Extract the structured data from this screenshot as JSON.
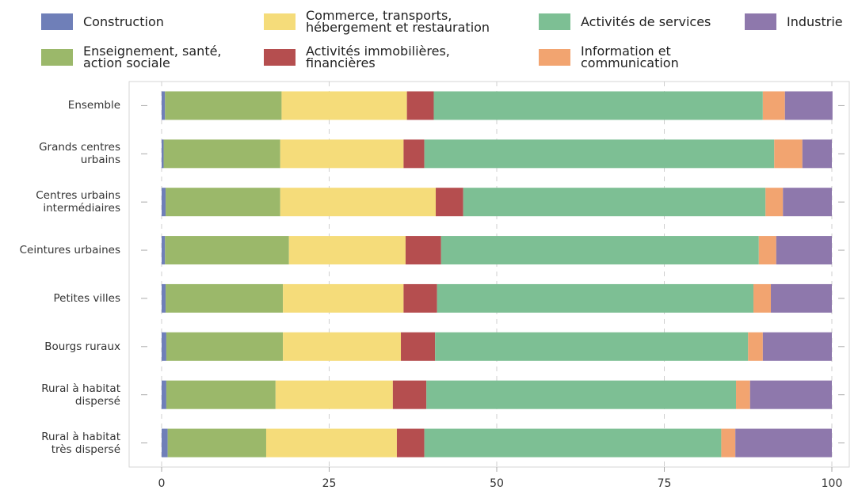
{
  "chart_data": {
    "type": "stacked-barh",
    "categories": [
      "Ensemble",
      "Grands centres\nurbains",
      "Centres urbains\nintermédiaires",
      "Ceintures urbaines",
      "Petites villes",
      "Bourgs ruraux",
      "Rural à habitat\ndispersé",
      "Rural à habitat\ntrès dispersé"
    ],
    "series": [
      {
        "name": "Construction",
        "color": "#6f7fb8",
        "values": [
          0.5,
          0.3,
          0.6,
          0.5,
          0.6,
          0.7,
          0.7,
          0.9
        ]
      },
      {
        "name": "Enseignement, santé,\naction sociale",
        "color": "#9bb86a",
        "values": [
          17.4,
          17.4,
          17.1,
          18.5,
          17.5,
          17.4,
          16.3,
          14.7
        ]
      },
      {
        "name": "Commerce, transports,\nhébergement et restauration",
        "color": "#f5dc7a",
        "values": [
          18.7,
          18.4,
          23.2,
          17.4,
          18.0,
          17.6,
          17.5,
          19.5
        ]
      },
      {
        "name": "Activités immobilières,\nfinancières",
        "color": "#b54e4f",
        "values": [
          4.0,
          3.1,
          4.1,
          5.3,
          5.0,
          5.1,
          5.0,
          4.1
        ]
      },
      {
        "name": "Activités de services",
        "color": "#7dbf94",
        "values": [
          49.1,
          52.2,
          45.1,
          47.4,
          47.2,
          46.7,
          46.2,
          44.3
        ]
      },
      {
        "name": "Information et\ncommunication",
        "color": "#f2a470",
        "values": [
          3.3,
          4.2,
          2.6,
          2.6,
          2.6,
          2.2,
          2.1,
          2.1
        ]
      },
      {
        "name": "Industrie",
        "color": "#8e78ac",
        "values": [
          7.1,
          4.4,
          7.3,
          8.3,
          9.1,
          10.3,
          12.2,
          14.4
        ]
      }
    ],
    "xlim": [
      0,
      100
    ],
    "xticks": [
      0,
      25,
      50,
      75,
      100
    ],
    "grid": true
  }
}
